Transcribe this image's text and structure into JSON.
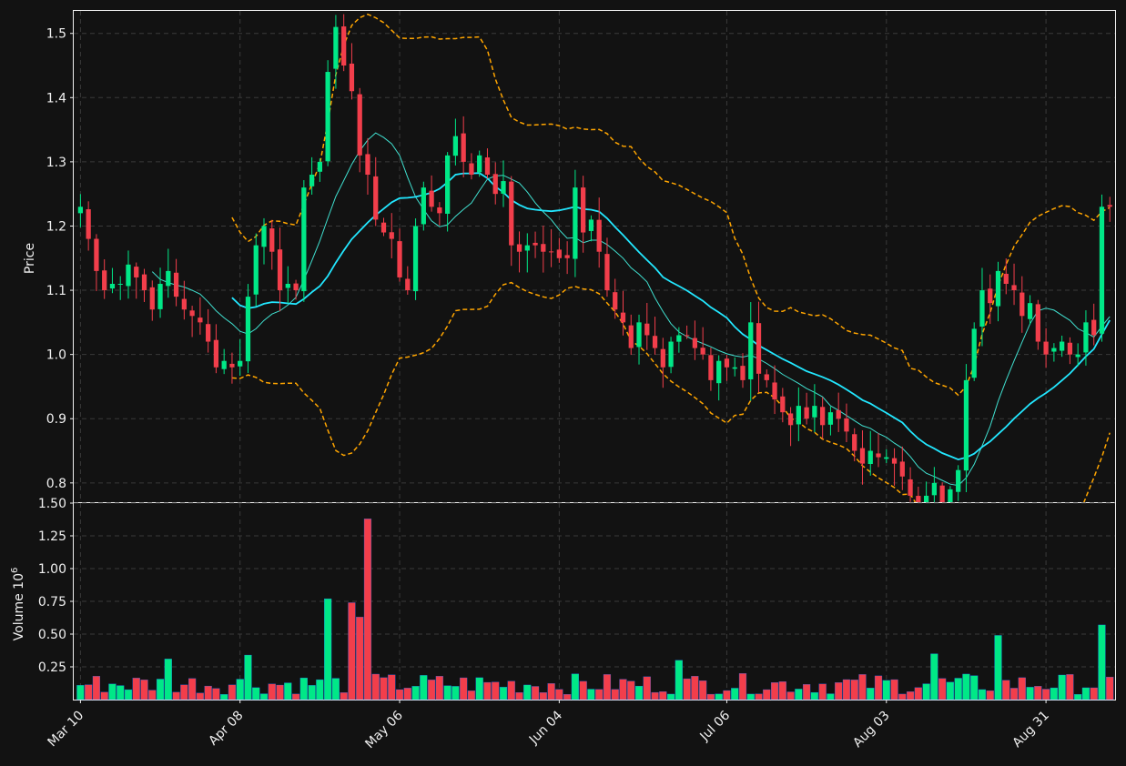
{
  "chart_data": [
    {
      "type": "candlestick",
      "ylabel": "Price",
      "ylim": [
        0.77,
        1.535
      ],
      "y_ticks": [
        "0.8",
        "0.9",
        "1.0",
        "1.1",
        "1.2",
        "1.3",
        "1.4",
        "1.5"
      ],
      "x_ticks": [
        "Mar 10",
        "Apr 08",
        "May 06",
        "Jun 04",
        "Jul 06",
        "Aug 03",
        "Aug 31"
      ],
      "up_color": "#00e887",
      "down_color": "#f23e4b",
      "ma_fast_color": "#40e0d0",
      "ma_slow_color": "#22e7ff",
      "band_color": "#ffa500",
      "grid": true,
      "close": [
        1.23,
        1.18,
        1.13,
        1.1,
        1.11,
        1.11,
        1.14,
        1.12,
        1.1,
        1.07,
        1.11,
        1.13,
        1.09,
        1.07,
        1.06,
        1.05,
        1.02,
        0.98,
        0.99,
        0.98,
        0.99,
        1.09,
        1.17,
        1.2,
        1.16,
        1.1,
        1.11,
        1.1,
        1.26,
        1.28,
        1.3,
        1.44,
        1.51,
        1.45,
        1.41,
        1.31,
        1.28,
        1.21,
        1.19,
        1.18,
        1.12,
        1.1,
        1.2,
        1.26,
        1.23,
        1.22,
        1.31,
        1.34,
        1.3,
        1.28,
        1.31,
        1.28,
        1.25,
        1.27,
        1.17,
        1.16,
        1.17,
        1.17,
        1.16,
        1.16,
        1.15,
        1.15,
        1.26,
        1.19,
        1.21,
        1.16,
        1.1,
        1.07,
        1.05,
        1.01,
        1.05,
        1.03,
        1.01,
        0.98,
        1.02,
        1.03,
        1.03,
        1.01,
        1.0,
        0.96,
        0.99,
        0.98,
        0.98,
        0.96,
        1.05,
        0.97,
        0.96,
        0.93,
        0.91,
        0.89,
        0.92,
        0.9,
        0.92,
        0.89,
        0.91,
        0.9,
        0.88,
        0.85,
        0.83,
        0.85,
        0.84,
        0.84,
        0.83,
        0.81,
        0.78,
        0.74,
        0.78,
        0.8,
        0.77,
        0.79,
        0.82,
        0.96,
        1.04,
        1.1,
        1.08,
        1.13,
        1.11,
        1.1,
        1.06,
        1.08,
        1.02,
        1.0,
        1.01,
        1.02,
        1.0,
        1.0,
        1.05,
        1.03,
        1.23,
        1.23
      ],
      "volume_ylabel": "Volume  10",
      "volume_exponent": "6",
      "volume_ylim": [
        0,
        1.5
      ],
      "volume_ticks": [
        "0.25",
        "0.50",
        "0.75",
        "1.00",
        "1.25",
        "1.50"
      ],
      "volume_highlights_millions": [
        0.77,
        0.74,
        0.63,
        1.38,
        0.31,
        0.34,
        0.3,
        0.35,
        0.49,
        0.57
      ]
    }
  ]
}
